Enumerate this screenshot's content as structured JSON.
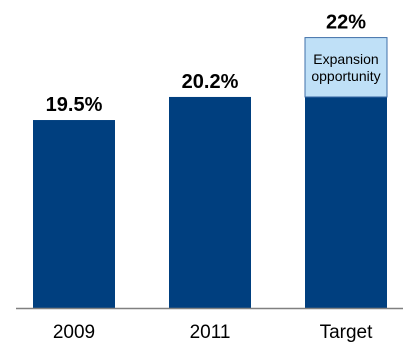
{
  "chart_data": {
    "type": "bar",
    "categories": [
      "2009",
      "2011",
      "Target"
    ],
    "values": [
      19.5,
      20.2,
      22
    ],
    "value_labels": [
      "19.5%",
      "20.2%",
      "22%"
    ],
    "annotation": {
      "category": "Target",
      "from": 20.2,
      "to": 22,
      "text_lines": [
        "Expansion",
        "opportunity"
      ]
    },
    "ylim": [
      13.8,
      22.2
    ],
    "grid": false,
    "axis_line": true,
    "colors": {
      "bar": "#003f7f",
      "annotation_fill": "#bfe0f7",
      "annotation_border": "#3f6fa8",
      "axis": "#808080"
    }
  }
}
